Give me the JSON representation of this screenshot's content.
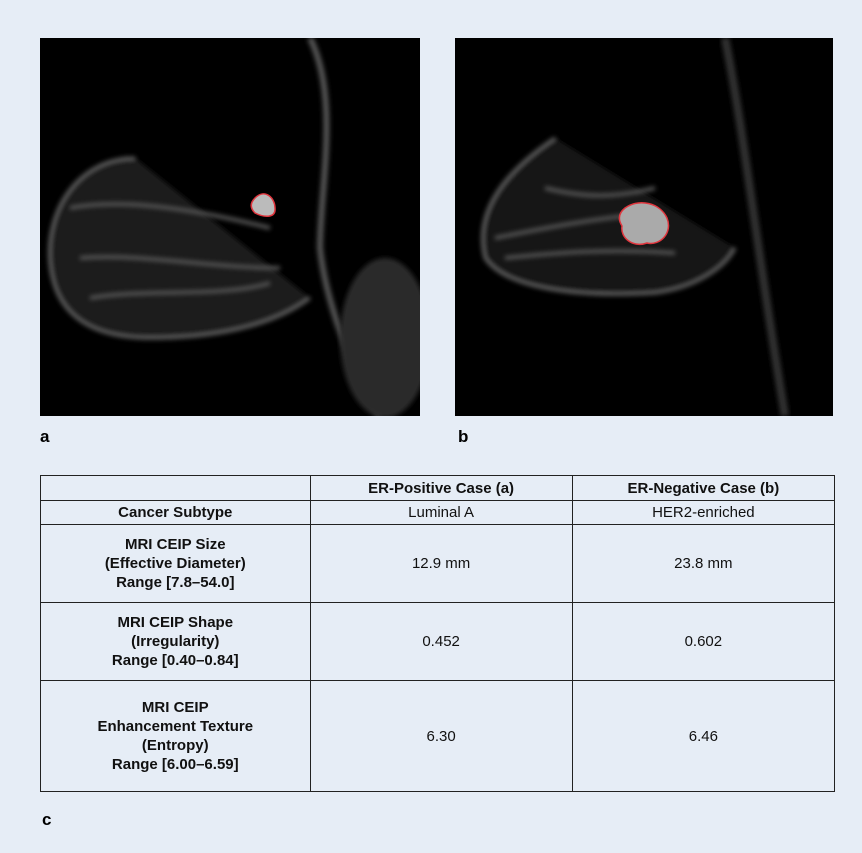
{
  "panels": [
    {
      "label": "a"
    },
    {
      "label": "b"
    }
  ],
  "table": {
    "label": "c",
    "header": [
      "ER-Positive Case (a)",
      "ER-Negative Case (b)"
    ],
    "rows": [
      [
        [
          "Cancer Subtype"
        ],
        "Luminal A",
        "HER2-enriched"
      ],
      [
        [
          "MRI CEIP Size",
          "(Effective Diameter)",
          "Range [7.8–54.0]"
        ],
        "12.9 mm",
        "23.8 mm"
      ],
      [
        [
          "MRI CEIP Shape",
          "(Irregularity)",
          "Range [0.40–0.84]"
        ],
        "0.452",
        "0.602"
      ],
      [
        [
          "MRI CEIP",
          "Enhancement Texture",
          "(Entropy)",
          "Range [6.00–6.59]"
        ],
        "6.30",
        "6.46"
      ]
    ]
  }
}
